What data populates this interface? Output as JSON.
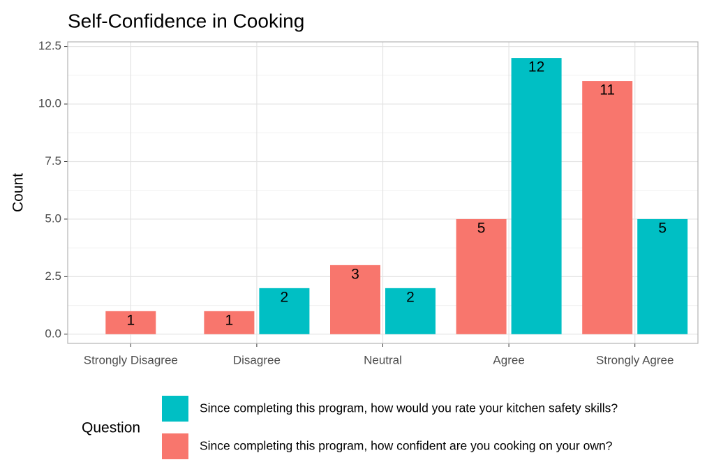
{
  "chart_data": {
    "type": "bar",
    "title": "Self-Confidence in Cooking",
    "y_label": "Count",
    "categories": [
      "Strongly Disagree",
      "Disagree",
      "Neutral",
      "Agree",
      "Strongly Agree"
    ],
    "series": [
      {
        "name": "Since completing this program, how would you rate your kitchen safety skills?",
        "color": "#00BFC4",
        "values": [
          null,
          2,
          2,
          12,
          5
        ]
      },
      {
        "name": "Since completing this program, how confident are you cooking on your own?",
        "color": "#F8766D",
        "values": [
          1,
          1,
          3,
          5,
          11
        ]
      }
    ],
    "legend_title": "Question",
    "ylim": [
      -0.4,
      12.7
    ],
    "yticks": [
      {
        "value": 0,
        "label": "0.0"
      },
      2.5,
      {
        "value": 5,
        "label": "5.0"
      },
      7.5,
      {
        "value": 10,
        "label": "10.0"
      },
      12.5
    ],
    "grid": true,
    "legend_position": "bottom"
  }
}
